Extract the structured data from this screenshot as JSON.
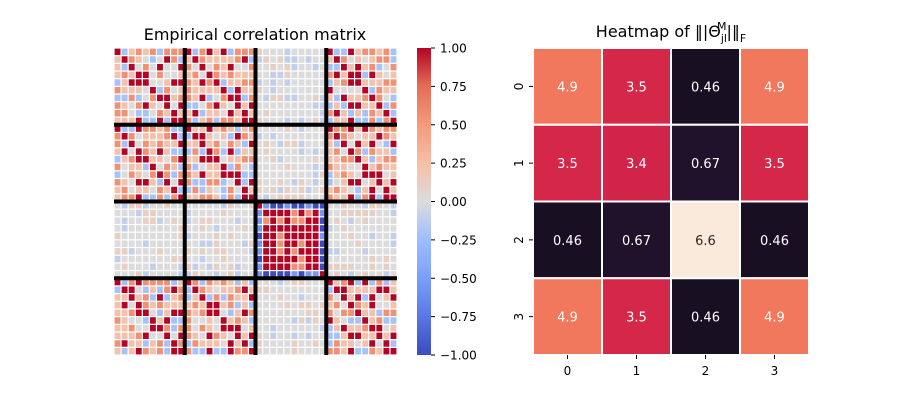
{
  "chart_data": [
    {
      "type": "heatmap",
      "title": "Empirical correlation matrix",
      "size": 40,
      "block_size": 10,
      "block_separators": true,
      "colormap": "coolwarm",
      "vmin": -1.0,
      "vmax": 1.0,
      "colorbar_ticks": [
        "1.00",
        "0.75",
        "0.50",
        "0.25",
        "0.00",
        "−0.25",
        "−0.50",
        "−0.75",
        "−1.00"
      ],
      "colorbar_tick_values": [
        1.0,
        0.75,
        0.5,
        0.25,
        0.0,
        -0.25,
        -0.5,
        -0.75,
        -1.0
      ],
      "value_levels": {
        "strong_positive": 1.0,
        "moderate_positive": 0.55,
        "weak_positive": 0.22,
        "near_zero": 0.0,
        "weak_negative": -0.22,
        "moderate_negative": -0.55,
        "strong_negative": -1.0
      },
      "block_pattern": [
        [
          "structured",
          "structured",
          "neutral",
          "structured"
        ],
        [
          "structured",
          "structured",
          "neutral",
          "structured"
        ],
        [
          "neutral",
          "neutral",
          "strong",
          "neutral"
        ],
        [
          "structured",
          "structured",
          "neutral",
          "structured"
        ]
      ]
    },
    {
      "type": "heatmap",
      "title": "Heatmap of ‖|Θ",
      "title_sup": "M",
      "title_sub_jl": "jl",
      "title_tail": "|‖",
      "title_sub_f": "F",
      "colormap": "rocket",
      "x_ticks": [
        "0",
        "1",
        "2",
        "3"
      ],
      "y_ticks": [
        "0",
        "1",
        "2",
        "3"
      ],
      "values": [
        [
          4.9,
          3.5,
          0.46,
          4.9
        ],
        [
          3.5,
          3.4,
          0.67,
          3.5
        ],
        [
          0.46,
          0.67,
          6.6,
          0.46
        ],
        [
          4.9,
          3.5,
          0.46,
          4.9
        ]
      ],
      "labels": [
        [
          "4.9",
          "3.5",
          "0.46",
          "4.9"
        ],
        [
          "3.5",
          "3.4",
          "0.67",
          "3.5"
        ],
        [
          "0.46",
          "0.67",
          "6.6",
          "0.46"
        ],
        [
          "4.9",
          "3.5",
          "0.46",
          "4.9"
        ]
      ]
    }
  ]
}
